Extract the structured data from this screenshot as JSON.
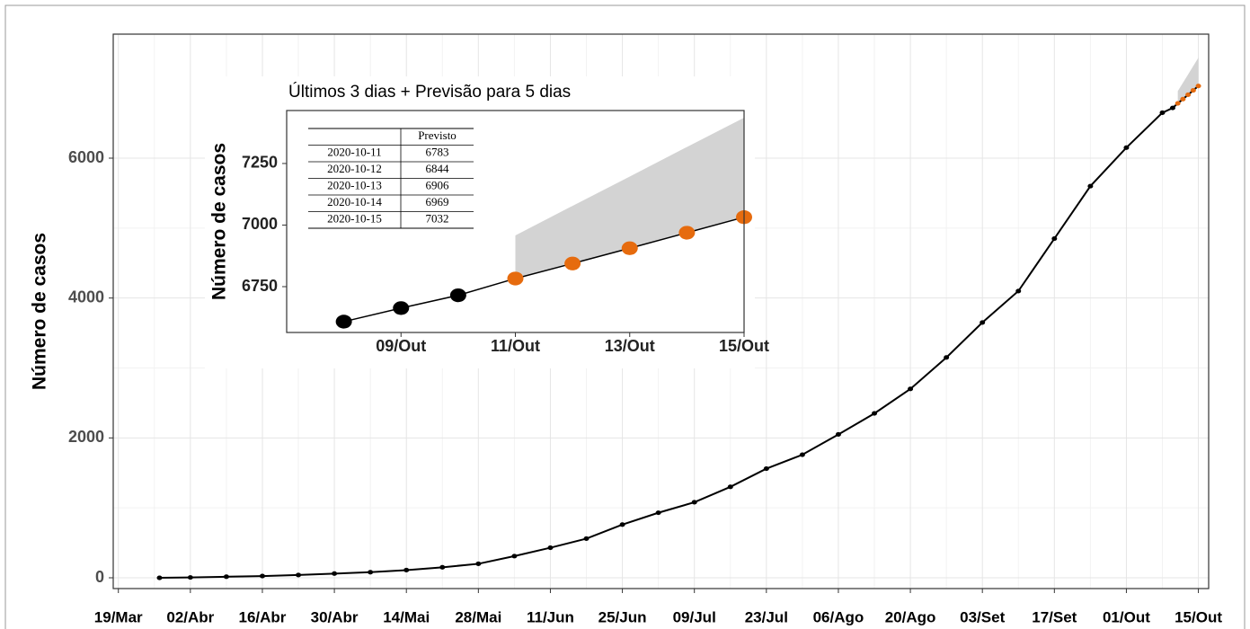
{
  "chart_data": [
    {
      "type": "line",
      "ylabel": "Número de casos",
      "xlim": [
        "18/Mar",
        "17/Out"
      ],
      "xticks": [
        "19/Mar",
        "02/Abr",
        "16/Abr",
        "30/Abr",
        "14/Mai",
        "28/Mai",
        "11/Jun",
        "25/Jun",
        "09/Jul",
        "23/Jul",
        "06/Ago",
        "20/Ago",
        "03/Set",
        "17/Set",
        "01/Out",
        "15/Out"
      ],
      "ylim": [
        -154,
        7773
      ],
      "yticks": [
        0,
        2000,
        4000,
        6000
      ],
      "grid": true,
      "series": [
        {
          "color": "#000000",
          "x": [
            "27/Mar",
            "02/Abr",
            "09/Abr",
            "16/Abr",
            "23/Abr",
            "30/Abr",
            "07/Mai",
            "14/Mai",
            "21/Mai",
            "28/Mai",
            "04/Jun",
            "11/Jun",
            "18/Jun",
            "25/Jun",
            "02/Jul",
            "09/Jul",
            "16/Jul",
            "23/Jul",
            "30/Jul",
            "06/Ago",
            "13/Ago",
            "20/Ago",
            "27/Ago",
            "03/Set",
            "10/Set",
            "17/Set",
            "24/Set",
            "01/Out",
            "08/Out",
            "10/Out"
          ],
          "values": [
            0,
            5,
            15,
            25,
            40,
            60,
            80,
            110,
            150,
            200,
            310,
            430,
            560,
            760,
            930,
            1080,
            1300,
            1560,
            1760,
            2050,
            2350,
            2700,
            3150,
            3650,
            4100,
            4850,
            5600,
            6150,
            6650,
            6718
          ]
        },
        {
          "color": "#e66b0e",
          "band_color": "#d3d3d3",
          "x": [
            "11/Out",
            "12/Out",
            "13/Out",
            "14/Out",
            "15/Out"
          ],
          "values": [
            6783,
            6844,
            6906,
            6969,
            7032
          ],
          "upper": [
            6958,
            7078,
            7197,
            7317,
            7436
          ]
        }
      ]
    },
    {
      "type": "line",
      "title": "Últimos 3 dias + Previsão para 5 dias",
      "ylabel": "Número de casos",
      "xlim": [
        "07/Out",
        "15/Out"
      ],
      "xticks": [
        "09/Out",
        "11/Out",
        "13/Out",
        "15/Out"
      ],
      "ylim": [
        6564,
        7465
      ],
      "yticks": [
        6750,
        7000,
        7250
      ],
      "series": [
        {
          "color": "#000000",
          "x": [
            "08/Out",
            "09/Out",
            "10/Out"
          ],
          "values": [
            6608,
            6663,
            6715
          ]
        },
        {
          "color": "#e66b0e",
          "band_color": "#d3d3d3",
          "x": [
            "11/Out",
            "12/Out",
            "13/Out",
            "14/Out",
            "15/Out"
          ],
          "values": [
            6783,
            6844,
            6906,
            6969,
            7032
          ],
          "upper": [
            6958,
            7078,
            7197,
            7317,
            7436
          ]
        }
      ]
    }
  ],
  "table": {
    "column": "Previsto",
    "dates": [
      "2020-10-11",
      "2020-10-12",
      "2020-10-13",
      "2020-10-14",
      "2020-10-15"
    ]
  }
}
